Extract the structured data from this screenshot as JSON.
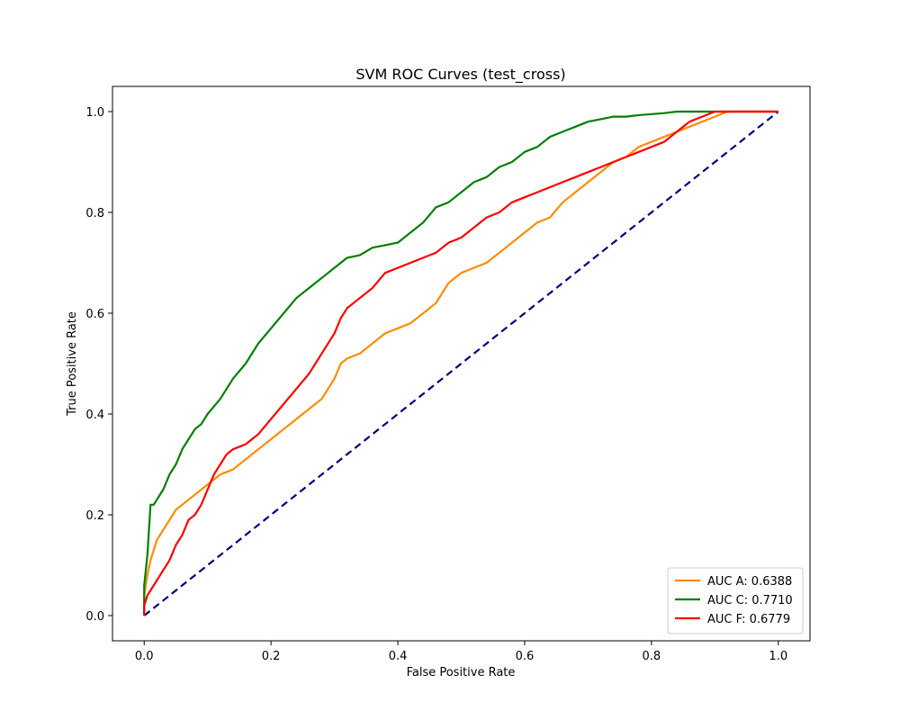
{
  "chart_data": {
    "type": "line",
    "title": "SVM ROC Curves (test_cross)",
    "xlabel": "False Positive Rate",
    "ylabel": "True Positive Rate",
    "xlim": [
      -0.05,
      1.05
    ],
    "ylim": [
      -0.05,
      1.05
    ],
    "xticks": [
      0.0,
      0.2,
      0.4,
      0.6,
      0.8,
      1.0
    ],
    "xtick_labels": [
      "0.0",
      "0.2",
      "0.4",
      "0.6",
      "0.8",
      "1.0"
    ],
    "yticks": [
      0.0,
      0.2,
      0.4,
      0.6,
      0.8,
      1.0
    ],
    "ytick_labels": [
      "0.0",
      "0.2",
      "0.4",
      "0.6",
      "0.8",
      "1.0"
    ],
    "grid": false,
    "legend_position": "lower-right",
    "series": [
      {
        "name": "AUC A: 0.6388",
        "color": "#ff8c00",
        "x": [
          0.0,
          0.0,
          0.005,
          0.01,
          0.015,
          0.02,
          0.03,
          0.04,
          0.05,
          0.06,
          0.07,
          0.08,
          0.09,
          0.1,
          0.12,
          0.14,
          0.15,
          0.16,
          0.18,
          0.2,
          0.22,
          0.24,
          0.25,
          0.26,
          0.28,
          0.3,
          0.31,
          0.32,
          0.34,
          0.36,
          0.38,
          0.4,
          0.42,
          0.44,
          0.46,
          0.48,
          0.5,
          0.52,
          0.54,
          0.56,
          0.58,
          0.6,
          0.62,
          0.64,
          0.66,
          0.68,
          0.7,
          0.72,
          0.74,
          0.76,
          0.78,
          0.8,
          0.82,
          0.84,
          0.86,
          0.88,
          0.9,
          0.92,
          0.95,
          1.0
        ],
        "y": [
          0.0,
          0.04,
          0.08,
          0.11,
          0.13,
          0.15,
          0.17,
          0.19,
          0.21,
          0.22,
          0.23,
          0.24,
          0.25,
          0.26,
          0.28,
          0.29,
          0.3,
          0.31,
          0.33,
          0.35,
          0.37,
          0.39,
          0.4,
          0.41,
          0.43,
          0.47,
          0.5,
          0.51,
          0.52,
          0.54,
          0.56,
          0.57,
          0.58,
          0.6,
          0.62,
          0.66,
          0.68,
          0.69,
          0.7,
          0.72,
          0.74,
          0.76,
          0.78,
          0.79,
          0.82,
          0.84,
          0.86,
          0.88,
          0.9,
          0.91,
          0.93,
          0.94,
          0.95,
          0.96,
          0.97,
          0.98,
          0.99,
          1.0,
          1.0,
          1.0
        ]
      },
      {
        "name": "AUC C: 0.7710",
        "color": "#008000",
        "x": [
          0.0,
          0.0,
          0.005,
          0.01,
          0.015,
          0.02,
          0.03,
          0.04,
          0.05,
          0.06,
          0.07,
          0.08,
          0.09,
          0.1,
          0.12,
          0.14,
          0.16,
          0.18,
          0.2,
          0.22,
          0.24,
          0.26,
          0.28,
          0.3,
          0.32,
          0.34,
          0.36,
          0.38,
          0.4,
          0.42,
          0.44,
          0.46,
          0.48,
          0.5,
          0.52,
          0.54,
          0.56,
          0.58,
          0.6,
          0.62,
          0.64,
          0.66,
          0.68,
          0.7,
          0.72,
          0.74,
          0.76,
          0.78,
          0.8,
          0.82,
          0.84,
          0.86,
          0.88,
          0.9,
          0.95,
          1.0
        ],
        "y": [
          0.0,
          0.06,
          0.12,
          0.22,
          0.22,
          0.23,
          0.25,
          0.28,
          0.3,
          0.33,
          0.35,
          0.37,
          0.38,
          0.4,
          0.43,
          0.47,
          0.5,
          0.54,
          0.57,
          0.6,
          0.63,
          0.65,
          0.67,
          0.69,
          0.71,
          0.715,
          0.73,
          0.735,
          0.74,
          0.76,
          0.78,
          0.81,
          0.82,
          0.84,
          0.86,
          0.87,
          0.89,
          0.9,
          0.92,
          0.93,
          0.95,
          0.96,
          0.97,
          0.98,
          0.985,
          0.99,
          0.99,
          0.993,
          0.995,
          0.997,
          1.0,
          1.0,
          1.0,
          1.0,
          1.0,
          1.0
        ]
      },
      {
        "name": "AUC F: 0.6779",
        "color": "#ff0000",
        "x": [
          0.0,
          0.0,
          0.005,
          0.01,
          0.02,
          0.03,
          0.04,
          0.05,
          0.06,
          0.07,
          0.08,
          0.09,
          0.1,
          0.11,
          0.12,
          0.13,
          0.14,
          0.16,
          0.18,
          0.2,
          0.22,
          0.24,
          0.26,
          0.28,
          0.3,
          0.31,
          0.32,
          0.34,
          0.36,
          0.38,
          0.4,
          0.42,
          0.44,
          0.46,
          0.48,
          0.5,
          0.52,
          0.54,
          0.56,
          0.58,
          0.6,
          0.62,
          0.64,
          0.66,
          0.68,
          0.7,
          0.72,
          0.74,
          0.76,
          0.78,
          0.8,
          0.82,
          0.84,
          0.86,
          0.88,
          0.9,
          0.95,
          1.0
        ],
        "y": [
          0.0,
          0.02,
          0.04,
          0.05,
          0.07,
          0.09,
          0.11,
          0.14,
          0.16,
          0.19,
          0.2,
          0.22,
          0.25,
          0.28,
          0.3,
          0.32,
          0.33,
          0.34,
          0.36,
          0.39,
          0.42,
          0.45,
          0.48,
          0.52,
          0.56,
          0.59,
          0.61,
          0.63,
          0.65,
          0.68,
          0.69,
          0.7,
          0.71,
          0.72,
          0.74,
          0.75,
          0.77,
          0.79,
          0.8,
          0.82,
          0.83,
          0.84,
          0.85,
          0.86,
          0.87,
          0.88,
          0.89,
          0.9,
          0.91,
          0.92,
          0.93,
          0.94,
          0.96,
          0.98,
          0.99,
          1.0,
          1.0,
          1.0
        ]
      },
      {
        "name": "",
        "color": "#000080",
        "dashed": true,
        "x": [
          0.0,
          1.0
        ],
        "y": [
          0.0,
          1.0
        ]
      }
    ]
  }
}
